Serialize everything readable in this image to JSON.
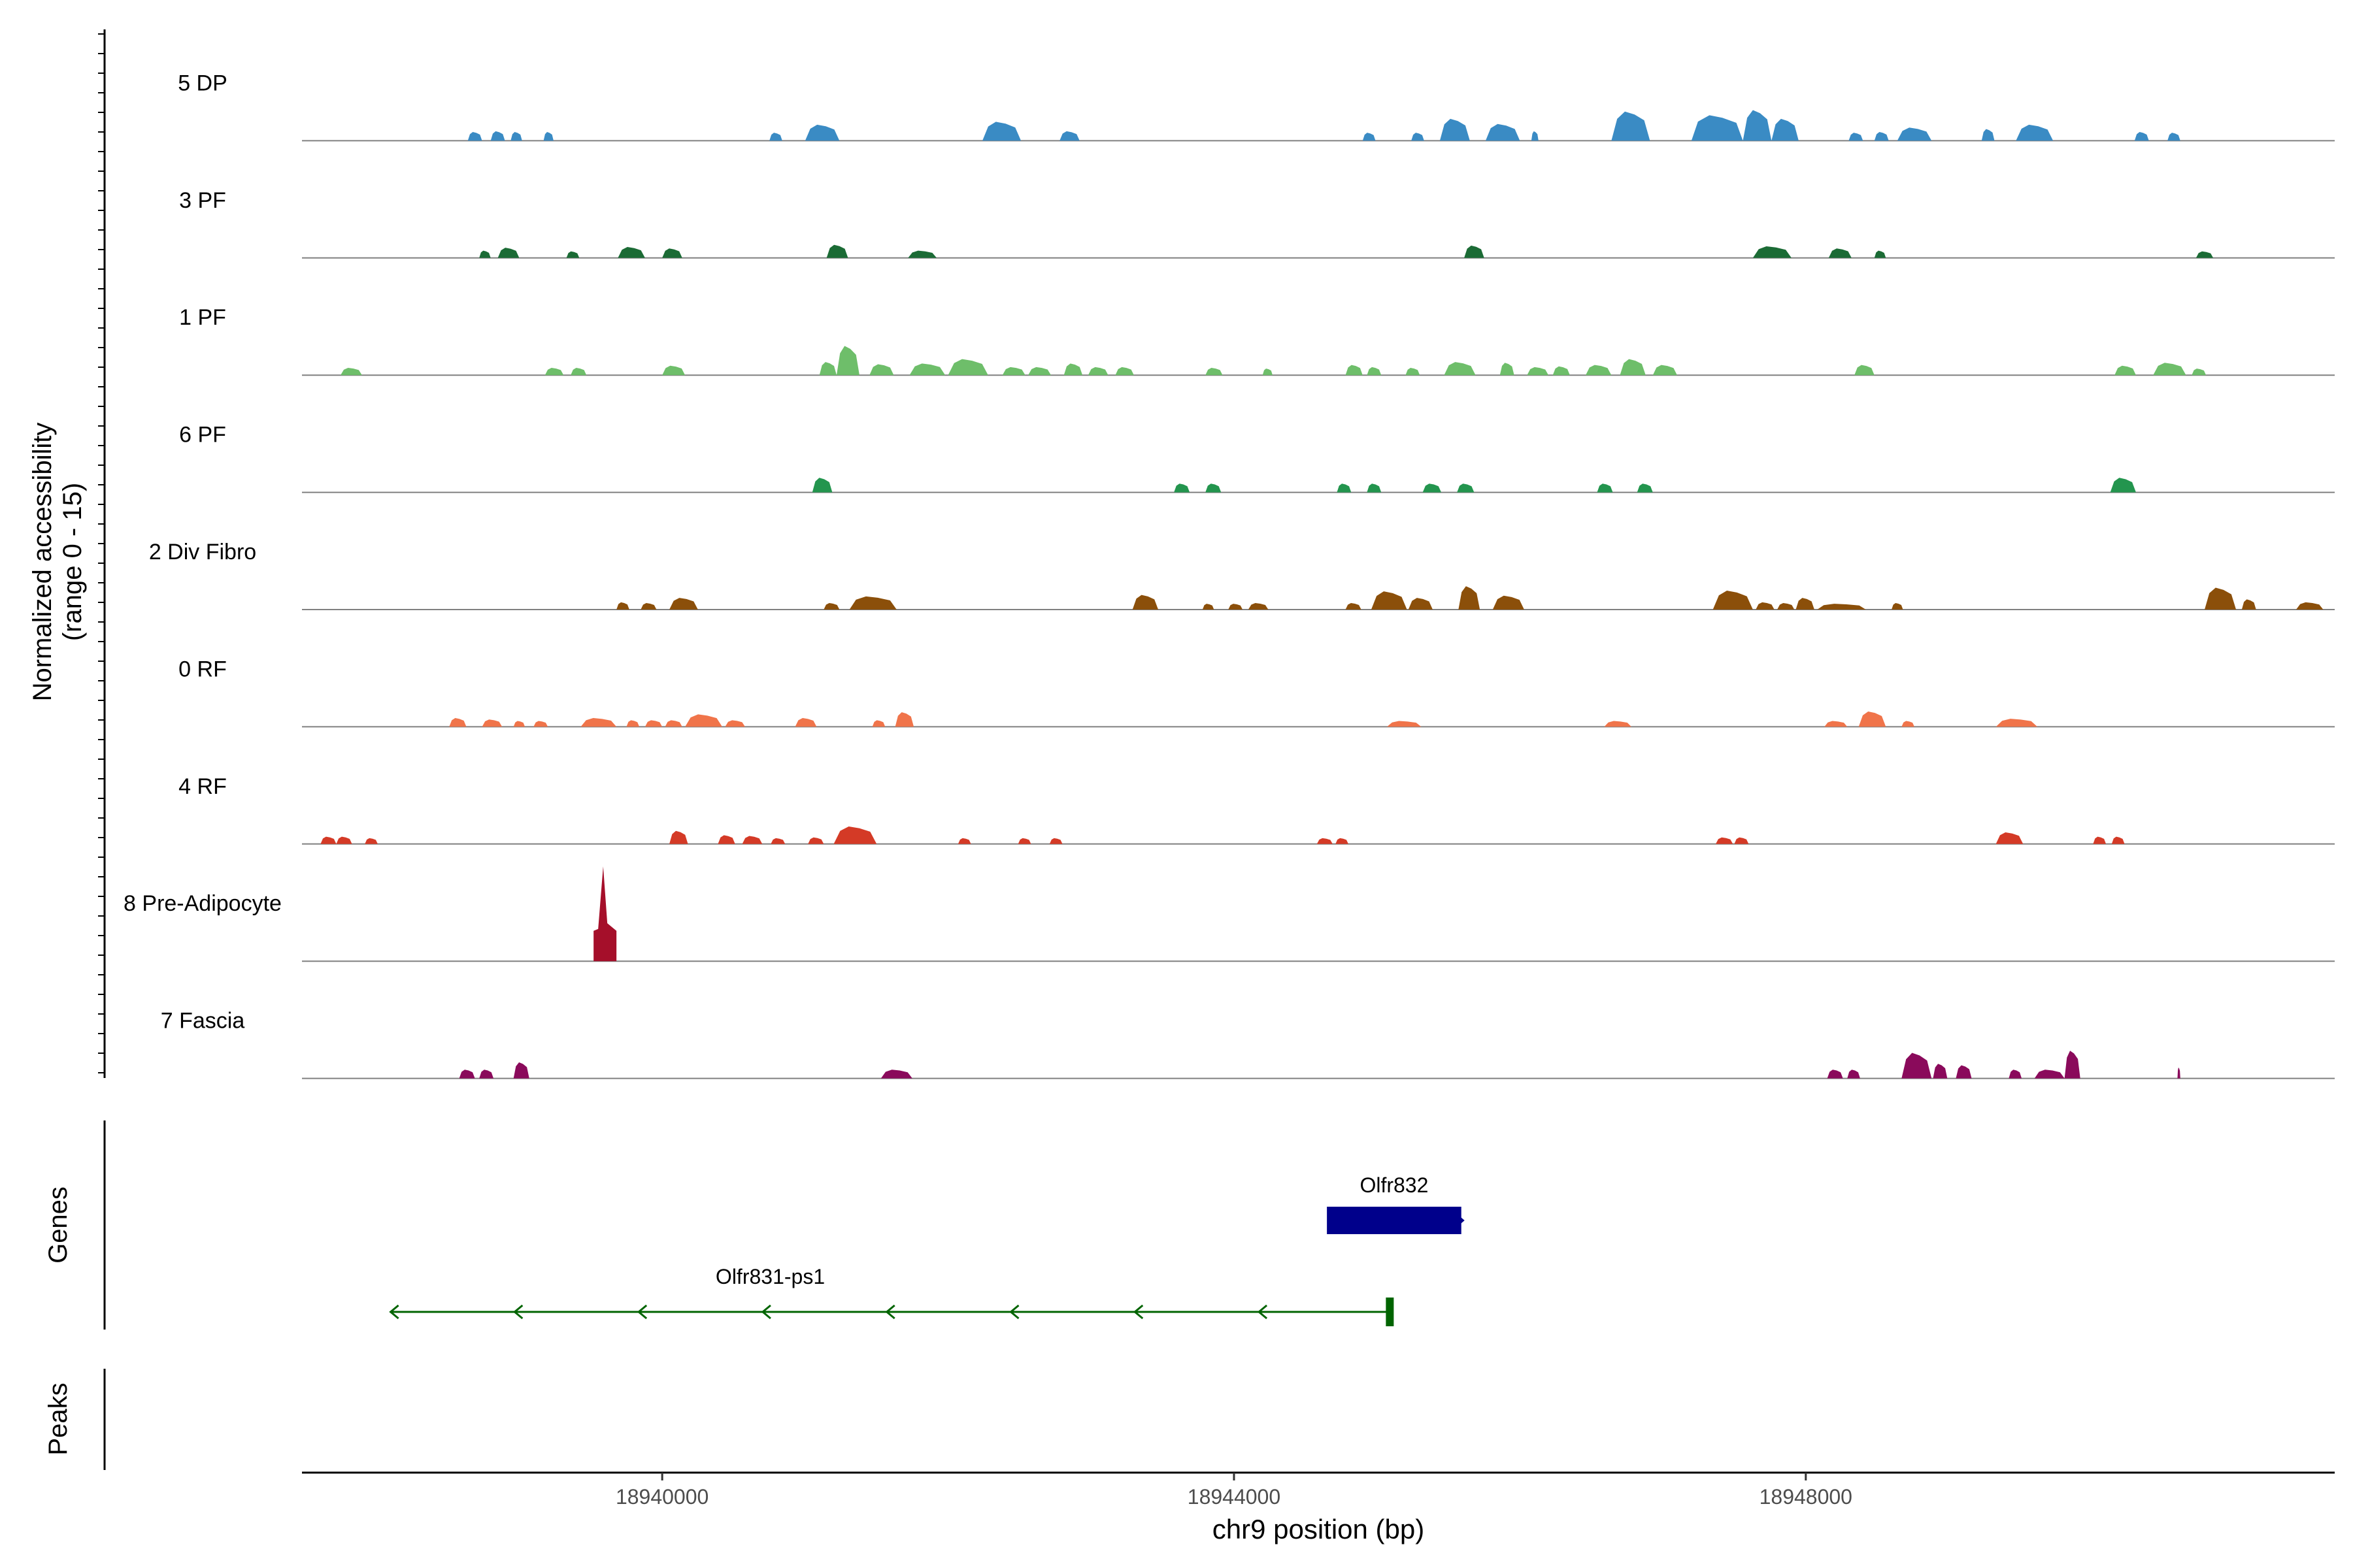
{
  "chart_data": {
    "type": "area",
    "title": "",
    "xlabel": "chr9 position (bp)",
    "ylabel_line1": "Normalized accessibility",
    "ylabel_line2": "(range 0 - 15)",
    "ylim": [
      0,
      15
    ],
    "xlim": [
      18937480,
      18951700
    ],
    "x_ticks": [
      18940000,
      18944000,
      18948000
    ],
    "x_tick_labels": [
      "18940000",
      "18944000",
      "18948000"
    ],
    "tracks": [
      {
        "name": "5 DP",
        "color": "#3a8bc4",
        "peaks": [
          [
            18938640,
            18938740,
            1.2
          ],
          [
            18938800,
            18938900,
            1.3
          ],
          [
            18938940,
            18939020,
            1.2
          ],
          [
            18939170,
            18939240,
            1.2
          ],
          [
            18940750,
            18940840,
            1.1
          ],
          [
            18941000,
            18941240,
            2.2
          ],
          [
            18942240,
            18942510,
            2.6
          ],
          [
            18942780,
            18942920,
            1.3
          ],
          [
            18944900,
            18944990,
            1.1
          ],
          [
            18945240,
            18945330,
            1.1
          ],
          [
            18945440,
            18945650,
            3.0
          ],
          [
            18945760,
            18946000,
            2.3
          ],
          [
            18946080,
            18946130,
            1.3
          ],
          [
            18946640,
            18946910,
            4.0
          ],
          [
            18947200,
            18947560,
            3.5
          ],
          [
            18947560,
            18947760,
            4.2
          ],
          [
            18947760,
            18947950,
            3.0
          ],
          [
            18948300,
            18948400,
            1.1
          ],
          [
            18948480,
            18948580,
            1.2
          ],
          [
            18948640,
            18948880,
            1.8
          ],
          [
            18949230,
            18949320,
            1.6
          ],
          [
            18949470,
            18949730,
            2.2
          ],
          [
            18950300,
            18950400,
            1.2
          ],
          [
            18950530,
            18950620,
            1.1
          ]
        ]
      },
      {
        "name": "3 PF",
        "color": "#1b6b35",
        "peaks": [
          [
            18938720,
            18938800,
            1.0
          ],
          [
            18938850,
            18939000,
            1.4
          ],
          [
            18939330,
            18939420,
            0.9
          ],
          [
            18939690,
            18939880,
            1.5
          ],
          [
            18940000,
            18940140,
            1.3
          ],
          [
            18941150,
            18941300,
            1.8
          ],
          [
            18941720,
            18941920,
            1.0
          ],
          [
            18945610,
            18945750,
            1.7
          ],
          [
            18947630,
            18947900,
            1.6
          ],
          [
            18948160,
            18948320,
            1.3
          ],
          [
            18948480,
            18948560,
            1.0
          ],
          [
            18950730,
            18950850,
            0.9
          ]
        ]
      },
      {
        "name": "1 PF",
        "color": "#6ebe6a",
        "peaks": [
          [
            18937750,
            18937900,
            1.0
          ],
          [
            18939180,
            18939310,
            1.0
          ],
          [
            18939360,
            18939470,
            1.0
          ],
          [
            18940000,
            18940160,
            1.3
          ],
          [
            18941100,
            18941220,
            1.8
          ],
          [
            18941220,
            18941380,
            4.0
          ],
          [
            18941450,
            18941620,
            1.5
          ],
          [
            18941730,
            18941980,
            1.6
          ],
          [
            18942000,
            18942280,
            2.2
          ],
          [
            18942380,
            18942540,
            1.1
          ],
          [
            18942560,
            18942720,
            1.1
          ],
          [
            18942810,
            18942940,
            1.6
          ],
          [
            18942980,
            18943120,
            1.1
          ],
          [
            18943170,
            18943300,
            1.1
          ],
          [
            18943800,
            18943920,
            1.0
          ],
          [
            18944200,
            18944270,
            0.9
          ],
          [
            18944780,
            18944900,
            1.4
          ],
          [
            18944930,
            18945030,
            1.1
          ],
          [
            18945200,
            18945300,
            1.0
          ],
          [
            18945470,
            18945690,
            1.8
          ],
          [
            18945860,
            18945960,
            1.7
          ],
          [
            18946050,
            18946200,
            1.1
          ],
          [
            18946230,
            18946350,
            1.2
          ],
          [
            18946460,
            18946640,
            1.4
          ],
          [
            18946700,
            18946880,
            2.2
          ],
          [
            18946930,
            18947100,
            1.4
          ],
          [
            18948340,
            18948480,
            1.4
          ],
          [
            18950160,
            18950310,
            1.3
          ],
          [
            18950430,
            18950660,
            1.7
          ],
          [
            18950700,
            18950800,
            0.9
          ]
        ]
      },
      {
        "name": "6 PF",
        "color": "#23954e",
        "peaks": [
          [
            18941050,
            18941190,
            2.0
          ],
          [
            18943580,
            18943690,
            1.2
          ],
          [
            18943800,
            18943910,
            1.2
          ],
          [
            18944720,
            18944820,
            1.2
          ],
          [
            18944930,
            18945030,
            1.2
          ],
          [
            18945320,
            18945450,
            1.2
          ],
          [
            18945560,
            18945680,
            1.2
          ],
          [
            18946540,
            18946650,
            1.2
          ],
          [
            18946820,
            18946930,
            1.2
          ],
          [
            18950130,
            18950310,
            2.0
          ]
        ]
      },
      {
        "name": "2 Div Fibro",
        "color": "#8b4f0a",
        "peaks": [
          [
            18939680,
            18939770,
            1.0
          ],
          [
            18939850,
            18939960,
            0.9
          ],
          [
            18940050,
            18940250,
            1.6
          ],
          [
            18941130,
            18941240,
            0.9
          ],
          [
            18941310,
            18941640,
            1.8
          ],
          [
            18943290,
            18943470,
            2.0
          ],
          [
            18943780,
            18943860,
            0.8
          ],
          [
            18943960,
            18944060,
            0.8
          ],
          [
            18944100,
            18944240,
            0.9
          ],
          [
            18944780,
            18944890,
            0.9
          ],
          [
            18944960,
            18945210,
            2.5
          ],
          [
            18945220,
            18945390,
            1.6
          ],
          [
            18945570,
            18945720,
            3.2
          ],
          [
            18945810,
            18946030,
            1.9
          ],
          [
            18947350,
            18947630,
            2.6
          ],
          [
            18947650,
            18947780,
            1.0
          ],
          [
            18947800,
            18947920,
            0.9
          ],
          [
            18947930,
            18948060,
            1.6
          ],
          [
            18948080,
            18948420,
            0.8
          ],
          [
            18948600,
            18948680,
            0.9
          ],
          [
            18950790,
            18951010,
            3.0
          ],
          [
            18951050,
            18951150,
            1.4
          ],
          [
            18951430,
            18951620,
            1.0
          ]
        ]
      },
      {
        "name": "0 RF",
        "color": "#f0744a",
        "peaks": [
          [
            18938510,
            18938630,
            1.2
          ],
          [
            18938740,
            18938880,
            1.0
          ],
          [
            18938960,
            18939040,
            0.8
          ],
          [
            18939100,
            18939200,
            0.8
          ],
          [
            18939430,
            18939680,
            1.2
          ],
          [
            18939750,
            18939840,
            0.9
          ],
          [
            18939880,
            18940000,
            0.9
          ],
          [
            18940020,
            18940140,
            0.9
          ],
          [
            18940160,
            18940420,
            1.7
          ],
          [
            18940440,
            18940580,
            0.9
          ],
          [
            18940930,
            18941080,
            1.2
          ],
          [
            18941470,
            18941560,
            0.9
          ],
          [
            18941630,
            18941760,
            2.0
          ],
          [
            18945070,
            18945310,
            0.8
          ],
          [
            18946590,
            18946780,
            0.8
          ],
          [
            18948130,
            18948290,
            0.8
          ],
          [
            18948370,
            18948560,
            2.1
          ],
          [
            18948670,
            18948760,
            0.8
          ],
          [
            18949330,
            18949620,
            1.1
          ]
        ]
      },
      {
        "name": "4 RF",
        "color": "#d43a26",
        "peaks": [
          [
            18937610,
            18937720,
            1.0
          ],
          [
            18937720,
            18937830,
            1.0
          ],
          [
            18937920,
            18938010,
            0.8
          ],
          [
            18940050,
            18940180,
            1.8
          ],
          [
            18940390,
            18940510,
            1.2
          ],
          [
            18940560,
            18940700,
            1.1
          ],
          [
            18940760,
            18940860,
            0.8
          ],
          [
            18941020,
            18941130,
            0.9
          ],
          [
            18941200,
            18941500,
            2.4
          ],
          [
            18942070,
            18942160,
            0.8
          ],
          [
            18942490,
            18942580,
            0.8
          ],
          [
            18942710,
            18942800,
            0.8
          ],
          [
            18944580,
            18944690,
            0.8
          ],
          [
            18944710,
            18944800,
            0.8
          ],
          [
            18947370,
            18947490,
            0.9
          ],
          [
            18947500,
            18947600,
            0.9
          ],
          [
            18949330,
            18949520,
            1.6
          ],
          [
            18950010,
            18950100,
            1.0
          ],
          [
            18950140,
            18950230,
            1.0
          ]
        ]
      },
      {
        "name": "8 Pre-Adipocyte",
        "color": "#a50f2a",
        "peaks": [
          [
            18939520,
            18939680,
            13.0
          ]
        ]
      },
      {
        "name": "7 Fascia",
        "color": "#8a0a5b",
        "peaks": [
          [
            18938580,
            18938690,
            1.2
          ],
          [
            18938720,
            18938820,
            1.2
          ],
          [
            18938960,
            18939070,
            2.2
          ],
          [
            18941530,
            18941750,
            1.2
          ],
          [
            18948150,
            18948260,
            1.2
          ],
          [
            18948290,
            18948380,
            1.2
          ],
          [
            18948670,
            18948880,
            3.5
          ],
          [
            18948890,
            18948990,
            2.0
          ],
          [
            18949050,
            18949160,
            1.8
          ],
          [
            18949420,
            18949510,
            1.2
          ],
          [
            18949600,
            18949810,
            1.2
          ],
          [
            18949810,
            18949920,
            3.8
          ],
          [
            18950600,
            18950620,
            1.5
          ]
        ]
      }
    ]
  },
  "genes_label": "Genes",
  "peaks_label": "Peaks",
  "genes": [
    {
      "name": "Olfr832",
      "start": 18944650,
      "end": 18945590,
      "strand": "+",
      "color": "#00008b"
    },
    {
      "name": "Olfr831-ps1",
      "start": 18938100,
      "end": 18945090,
      "strand": "-",
      "color": "#006400"
    }
  ]
}
